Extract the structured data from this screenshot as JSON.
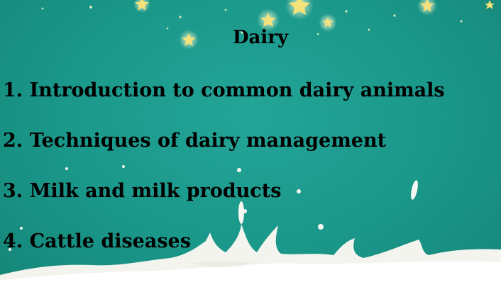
{
  "slide": {
    "title": "Dairy",
    "topics": [
      "1. Introduction to common dairy animals",
      "2. Techniques of dairy management",
      "3. Milk and milk products",
      "4. Cattle diseases"
    ]
  },
  "colors": {
    "background": "#1a9789",
    "stars": "#f7e98a",
    "milk": "#f7f7f2",
    "text": "#000000"
  },
  "icons": [
    "star-icon",
    "milk-splash-decoration"
  ]
}
